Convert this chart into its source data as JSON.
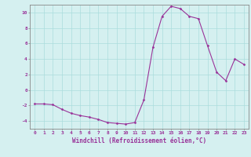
{
  "hours": [
    0,
    1,
    2,
    3,
    4,
    5,
    6,
    7,
    8,
    9,
    10,
    11,
    12,
    13,
    14,
    15,
    16,
    17,
    18,
    19,
    20,
    21,
    22,
    23
  ],
  "values": [
    -1.8,
    -1.8,
    -1.9,
    -2.5,
    -3.0,
    -3.3,
    -3.5,
    -3.8,
    -4.2,
    -4.3,
    -4.4,
    -4.2,
    -1.3,
    5.5,
    9.5,
    10.8,
    10.5,
    9.5,
    9.2,
    5.7,
    2.3,
    1.2,
    4.0,
    3.3
  ],
  "xlabel": "Windchill (Refroidissement éolien,°C)",
  "ylim": [
    -5,
    11
  ],
  "yticks": [
    -4,
    -2,
    0,
    2,
    4,
    6,
    8,
    10
  ],
  "line_color": "#993399",
  "marker": "D",
  "marker_size": 1.5,
  "bg_color": "#d5f0f0",
  "grid_color": "#aadddd",
  "tick_label_color": "#993399",
  "xlabel_color": "#993399",
  "tick_fontsize": 4.5,
  "xlabel_fontsize": 5.5,
  "linewidth": 0.8
}
